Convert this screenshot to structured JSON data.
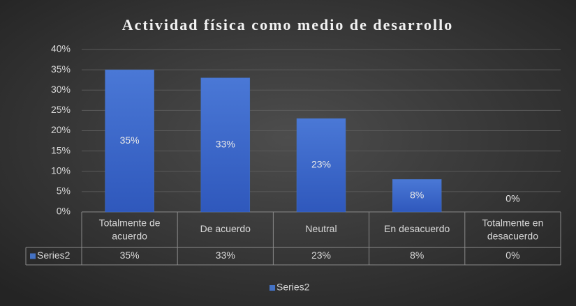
{
  "chart_data": {
    "type": "bar",
    "title": "Actividad  física como medio de desarrollo",
    "categories": [
      "Totalmente de acuerdo",
      "De acuerdo",
      "Neutral",
      "En desacuerdo",
      "Totalmente en desacuerdo"
    ],
    "series": [
      {
        "name": "Series2",
        "color": "#4472c4",
        "values": [
          35,
          33,
          23,
          8,
          0
        ],
        "value_labels": [
          "35%",
          "33%",
          "23%",
          "8%",
          "0%"
        ]
      }
    ],
    "ylim": [
      0,
      40
    ],
    "yticks": [
      {
        "value": 0,
        "label": "0%"
      },
      {
        "value": 5,
        "label": "5%"
      },
      {
        "value": 10,
        "label": "10%"
      },
      {
        "value": 15,
        "label": "15%"
      },
      {
        "value": 20,
        "label": "20%"
      },
      {
        "value": 25,
        "label": "25%"
      },
      {
        "value": 30,
        "label": "30%"
      },
      {
        "value": 35,
        "label": "35%"
      },
      {
        "value": 40,
        "label": "40%"
      }
    ],
    "grid": true,
    "legend": "bottom",
    "data_table": true
  }
}
